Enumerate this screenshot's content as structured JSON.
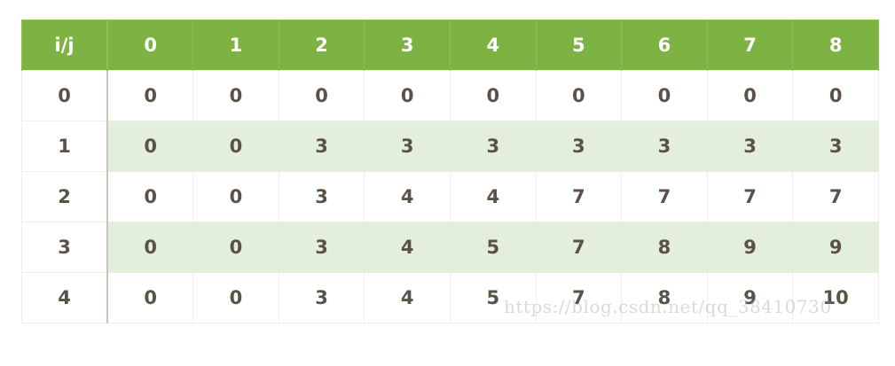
{
  "table": {
    "corner_label": "i/j",
    "columns": [
      "0",
      "1",
      "2",
      "3",
      "4",
      "5",
      "6",
      "7",
      "8"
    ],
    "rows": [
      {
        "label": "0",
        "cells": [
          "0",
          "0",
          "0",
          "0",
          "0",
          "0",
          "0",
          "0",
          "0"
        ]
      },
      {
        "label": "1",
        "cells": [
          "0",
          "0",
          "3",
          "3",
          "3",
          "3",
          "3",
          "3",
          "3"
        ]
      },
      {
        "label": "2",
        "cells": [
          "0",
          "0",
          "3",
          "4",
          "4",
          "7",
          "7",
          "7",
          "7"
        ]
      },
      {
        "label": "3",
        "cells": [
          "0",
          "0",
          "3",
          "4",
          "5",
          "7",
          "8",
          "9",
          "9"
        ]
      },
      {
        "label": "4",
        "cells": [
          "0",
          "0",
          "3",
          "4",
          "5",
          "7",
          "8",
          "9",
          "10"
        ]
      }
    ]
  },
  "watermark": "https://blog.csdn.net/qq_38410730",
  "colors": {
    "header_bg": "#7cb342",
    "stripe_bg": "#e3eedb",
    "text": "#5b5147"
  }
}
